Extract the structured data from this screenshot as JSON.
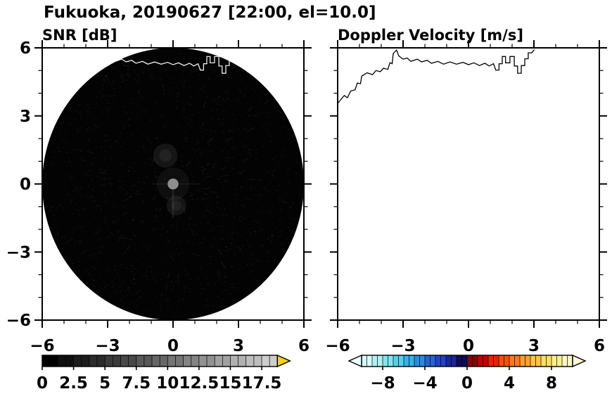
{
  "title": "Fukuoka, 20190627 [22:00, el=10.0]",
  "panels": {
    "snr": {
      "title": "SNR [dB]"
    },
    "doppler": {
      "title": "Doppler Velocity [m/s]"
    }
  },
  "chart_data": [
    {
      "type": "heatmap",
      "title": "SNR [dB]",
      "xlim": [
        -6,
        6
      ],
      "ylim": [
        -6,
        6
      ],
      "xticks": [
        -6,
        -3,
        0,
        3,
        6
      ],
      "yticks": [
        -6,
        -3,
        0,
        3,
        6
      ],
      "xtick_labels": [
        "−6",
        "−3",
        "0",
        "3",
        "6"
      ],
      "ytick_labels": [
        "−6",
        "−3",
        "0",
        "3",
        "6"
      ],
      "minor_tick_step": 1,
      "scan_disk": {
        "center": [
          0,
          0
        ],
        "radius": 6,
        "note": "PPI radar disk, near-zero dB speckle noise"
      },
      "echo_features": [
        {
          "x": 0.0,
          "y": 0.0,
          "radius": 0.25,
          "note": "bright central echo"
        },
        {
          "x": -0.35,
          "y": 1.25,
          "radius": 0.55,
          "note": "weak diffuse echo"
        },
        {
          "x": 0.15,
          "y": -0.95,
          "radius": 0.45,
          "note": "weak diffuse echo"
        }
      ],
      "colorbar": {
        "min": 0,
        "max": 18.75,
        "separator_step": 0.625,
        "tick_values": [
          0,
          2.5,
          5,
          7.5,
          10,
          12.5,
          15,
          17.5
        ],
        "tick_labels": [
          "0",
          "2.5",
          "5",
          "7.5",
          "10",
          "12.5",
          "15",
          "17.5"
        ],
        "segment_colors": [
          "#000000",
          "#0f0f0f",
          "#1d1d1d",
          "#2c2c2c",
          "#3b3b3b",
          "#494949",
          "#585858",
          "#666666",
          "#757575",
          "#848484",
          "#929292",
          "#a1a1a1",
          "#b0b0b0",
          "#bebebe",
          "#cdcdcd"
        ],
        "over_arrow_color": "#f2d21f"
      }
    },
    {
      "type": "heatmap",
      "title": "Doppler Velocity [m/s]",
      "xlim": [
        -6,
        6
      ],
      "ylim": [
        -6,
        6
      ],
      "xticks": [
        -6,
        -3,
        0,
        3,
        6
      ],
      "yticks": [
        -6,
        -3,
        0,
        3,
        6
      ],
      "xtick_labels": [
        "−6",
        "−3",
        "0",
        "3",
        "6"
      ],
      "ytick_labels": [
        "−6",
        "−3",
        "0",
        "3",
        "6"
      ],
      "minor_tick_step": 1,
      "field": "no echoes displayed (blank field, coastline only)",
      "colorbar": {
        "min": -10,
        "max": 10,
        "separator_step": 0.5,
        "tick_values": [
          -8,
          -4,
          0,
          4,
          8
        ],
        "tick_labels": [
          "−8",
          "−4",
          "0",
          "4",
          "8"
        ],
        "segment_colors": [
          "#d8fbfb",
          "#aef2f4",
          "#7fe6f0",
          "#55d0ec",
          "#38b0e6",
          "#2b8ade",
          "#2763d4",
          "#2342c6",
          "#1b2699",
          "#0d0d55",
          "#8c0000",
          "#c30000",
          "#e52600",
          "#f45200",
          "#fb7a1a",
          "#ffa030",
          "#ffc348",
          "#ffdf63",
          "#fff08e",
          "#fdf8c6"
        ],
        "under_arrow_color": "#e8feff",
        "over_arrow_color": "#fdf8d8"
      }
    }
  ],
  "coastline": [
    [
      -6.0,
      3.55
    ],
    [
      -5.7,
      3.9
    ],
    [
      -5.55,
      3.8
    ],
    [
      -5.4,
      4.1
    ],
    [
      -5.2,
      4.15
    ],
    [
      -5.1,
      4.45
    ],
    [
      -4.95,
      4.42
    ],
    [
      -4.9,
      4.75
    ],
    [
      -4.65,
      4.9
    ],
    [
      -4.4,
      4.82
    ],
    [
      -4.25,
      5.0
    ],
    [
      -4.05,
      4.95
    ],
    [
      -3.9,
      5.1
    ],
    [
      -3.7,
      5.05
    ],
    [
      -3.6,
      5.35
    ],
    [
      -3.5,
      5.3
    ],
    [
      -3.45,
      5.75
    ],
    [
      -3.3,
      5.9
    ],
    [
      -3.2,
      5.65
    ],
    [
      -3.0,
      5.5
    ],
    [
      -2.8,
      5.55
    ],
    [
      -2.65,
      5.4
    ],
    [
      -2.35,
      5.5
    ],
    [
      -2.15,
      5.38
    ],
    [
      -1.9,
      5.45
    ],
    [
      -1.7,
      5.32
    ],
    [
      -1.4,
      5.4
    ],
    [
      -1.15,
      5.28
    ],
    [
      -0.85,
      5.38
    ],
    [
      -0.55,
      5.28
    ],
    [
      -0.25,
      5.36
    ],
    [
      0.0,
      5.26
    ],
    [
      0.25,
      5.34
    ],
    [
      0.5,
      5.22
    ],
    [
      0.75,
      5.32
    ],
    [
      0.95,
      5.2
    ],
    [
      1.15,
      5.3
    ],
    [
      1.25,
      5.02
    ],
    [
      1.4,
      5.02
    ],
    [
      1.4,
      5.3
    ],
    [
      1.55,
      5.3
    ],
    [
      1.55,
      5.62
    ],
    [
      1.7,
      5.62
    ],
    [
      1.7,
      5.34
    ],
    [
      1.9,
      5.34
    ],
    [
      1.9,
      5.62
    ],
    [
      2.1,
      5.62
    ],
    [
      2.1,
      5.2
    ],
    [
      2.25,
      5.2
    ],
    [
      2.25,
      4.88
    ],
    [
      2.42,
      4.88
    ],
    [
      2.42,
      5.22
    ],
    [
      2.58,
      5.22
    ],
    [
      2.58,
      5.52
    ],
    [
      2.74,
      5.52
    ],
    [
      2.74,
      5.78
    ],
    [
      2.9,
      5.78
    ],
    [
      3.02,
      5.92
    ]
  ]
}
